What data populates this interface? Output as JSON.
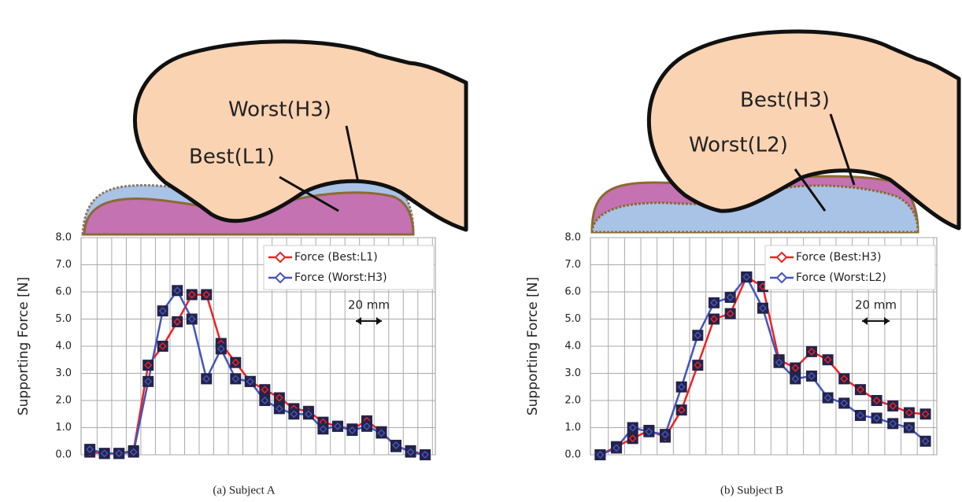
{
  "chart_data": [
    {
      "type": "line",
      "caption": "(a)  Subject A",
      "y_label": "Supporting Force [N]",
      "labels": [
        "Worst(H3)",
        "Best(L1)"
      ],
      "annotation": "20 mm",
      "categories": [
        null,
        null,
        null,
        null,
        null,
        null,
        null,
        null,
        null,
        null,
        null,
        null,
        null,
        null,
        null,
        null,
        null,
        null,
        null,
        null,
        null,
        null,
        null,
        null
      ],
      "series": [
        {
          "name": "Force (Best:L1)",
          "color": "#ee2222",
          "values": [
            0.1,
            0.05,
            0.05,
            0.15,
            3.3,
            4.0,
            4.9,
            5.9,
            5.9,
            4.1,
            3.4,
            2.7,
            2.4,
            2.1,
            1.7,
            1.6,
            1.2,
            1.05,
            0.95,
            1.25,
            0.85,
            0.3,
            0.15,
            0.0
          ]
        },
        {
          "name": "Force (Worst:H3)",
          "color": "#4455bb",
          "values": [
            0.2,
            0.05,
            0.05,
            0.1,
            2.7,
            5.3,
            6.05,
            5.0,
            2.8,
            3.9,
            2.8,
            2.7,
            2.0,
            1.7,
            1.5,
            1.5,
            0.95,
            1.05,
            0.9,
            1.05,
            0.8,
            0.35,
            0.1,
            0.0
          ]
        }
      ],
      "ylim": [
        0,
        8
      ],
      "yticks": [
        {
          "value": 0,
          "label": "0.0"
        },
        {
          "value": 1,
          "label": "1.0"
        },
        {
          "value": 2,
          "label": "2.0"
        },
        {
          "value": 3,
          "label": "3.0"
        },
        {
          "value": 4,
          "label": "4.0"
        },
        {
          "value": 5,
          "label": "5.0"
        },
        {
          "value": 6,
          "label": "6.0"
        },
        {
          "value": 7,
          "label": "7.0"
        },
        {
          "value": 8,
          "label": "8.0"
        }
      ],
      "grid": true,
      "legend": "top-right"
    },
    {
      "type": "line",
      "caption": "(b)  Subject B",
      "y_label": "Supporting Force [N]",
      "labels": [
        "Best(H3)",
        "Worst(L2)"
      ],
      "annotation": "20 mm",
      "categories": [
        null,
        null,
        null,
        null,
        null,
        null,
        null,
        null,
        null,
        null,
        null,
        null,
        null,
        null,
        null,
        null,
        null,
        null,
        null,
        null,
        null
      ],
      "series": [
        {
          "name": "Force (Best:H3)",
          "color": "#ee2222",
          "values": [
            0.0,
            0.3,
            0.6,
            0.9,
            0.65,
            1.65,
            3.3,
            5.0,
            5.2,
            6.55,
            6.2,
            3.5,
            3.2,
            3.8,
            3.5,
            2.8,
            2.4,
            2.0,
            1.8,
            1.55,
            1.5
          ]
        },
        {
          "name": "Force (Worst:L2)",
          "color": "#4455bb",
          "values": [
            0.0,
            0.25,
            1.0,
            0.85,
            0.75,
            2.5,
            4.4,
            5.6,
            5.8,
            6.55,
            5.4,
            3.4,
            2.8,
            2.9,
            2.1,
            1.9,
            1.45,
            1.35,
            1.15,
            1.0,
            0.5
          ]
        }
      ],
      "ylim": [
        0,
        8
      ],
      "yticks": [
        {
          "value": 0,
          "label": "0.0"
        },
        {
          "value": 1,
          "label": "1.0"
        },
        {
          "value": 2,
          "label": "2.0"
        },
        {
          "value": 3,
          "label": "3.0"
        },
        {
          "value": 4,
          "label": "4.0"
        },
        {
          "value": 5,
          "label": "5.0"
        },
        {
          "value": 6,
          "label": "6.0"
        },
        {
          "value": 7,
          "label": "7.0"
        },
        {
          "value": 8,
          "label": "8.0"
        }
      ],
      "grid": true,
      "legend": "top-right"
    }
  ]
}
